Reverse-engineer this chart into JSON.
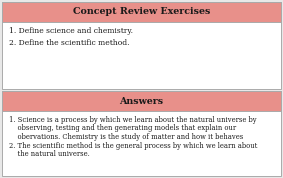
{
  "header1": "Concept Review Exercises",
  "header1_bg": "#e8908a",
  "questions": [
    "1. Define science and chemistry.",
    "2. Define the scientific method."
  ],
  "header2": "Answers",
  "header2_bg": "#e8908a",
  "answer1_line1": "1. Science is a process by which we learn about the natural universe by",
  "answer1_line2": "    observing, testing and then generating models that explain our",
  "answer1_line3": "    obervations. Chemistry is the study of matter and how it behaves",
  "answer2_line1": "2. The scientific method is the general process by which we learn about",
  "answer2_line2": "    the natural universe.",
  "box_bg": "#ffffff",
  "border_color": "#aaaaaa",
  "text_color": "#1a1a1a",
  "header_text_color": "#1a1a1a",
  "fig_bg": "#e8e8e8"
}
